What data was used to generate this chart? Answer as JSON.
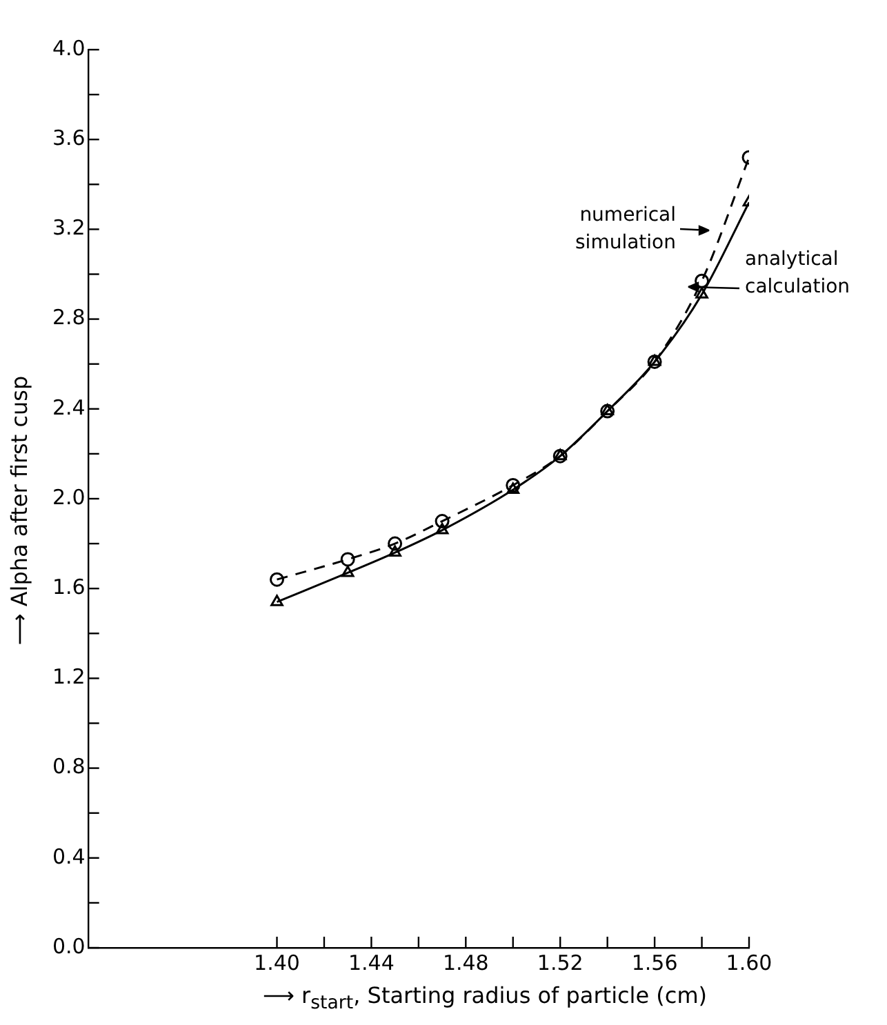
{
  "chart_data": {
    "type": "line",
    "xlabel": "⟶ r$_{start}$, Starting radius of particle (cm)",
    "ylabel": "⟶ Alpha after first cusp",
    "x": [
      1.4,
      1.43,
      1.45,
      1.47,
      1.5,
      1.52,
      1.54,
      1.56,
      1.58,
      1.6
    ],
    "series": [
      {
        "color": "#000000",
        "marker": "circle",
        "line_style": "dashed",
        "values": [
          1.64,
          1.73,
          1.8,
          1.9,
          2.06,
          2.19,
          2.39,
          2.61,
          2.97,
          3.52
        ]
      },
      {
        "color": "#000000",
        "marker": "triangle",
        "line_style": "solid",
        "values": [
          1.54,
          1.67,
          1.76,
          1.86,
          2.04,
          2.19,
          2.39,
          2.61,
          2.91,
          3.32
        ]
      }
    ],
    "annotations": [
      "numerical\nsimulation",
      "analytical\ncalculation"
    ],
    "xlim": [
      1.32,
      1.6
    ],
    "xticks": [
      {
        "value": 1.4,
        "label": "1.40"
      },
      {
        "value": 1.42,
        "label": null
      },
      {
        "value": 1.44,
        "label": "1.44"
      },
      {
        "value": 1.46,
        "label": null
      },
      {
        "value": 1.48,
        "label": "1.48"
      },
      {
        "value": 1.5,
        "label": null
      },
      {
        "value": 1.52,
        "label": "1.52"
      },
      {
        "value": 1.54,
        "label": null
      },
      {
        "value": 1.56,
        "label": "1.56"
      },
      {
        "value": 1.58,
        "label": null
      },
      {
        "value": 1.6,
        "label": "1.60"
      }
    ],
    "ylim": [
      0,
      4
    ],
    "yticks": [
      {
        "value": 0,
        "label": "0.0"
      },
      {
        "value": 0.2,
        "label": null
      },
      {
        "value": 0.4,
        "label": "0.4"
      },
      {
        "value": 0.6,
        "label": null
      },
      {
        "value": 0.8,
        "label": "0.8"
      },
      {
        "value": 1.0,
        "label": null
      },
      {
        "value": 1.2,
        "label": "1.2"
      },
      {
        "value": 1.4,
        "label": null
      },
      {
        "value": 1.6,
        "label": "1.6"
      },
      {
        "value": 1.8,
        "label": null
      },
      {
        "value": 2.0,
        "label": "2.0"
      },
      {
        "value": 2.2,
        "label": null
      },
      {
        "value": 2.4,
        "label": "2.4"
      },
      {
        "value": 2.6,
        "label": null
      },
      {
        "value": 2.8,
        "label": "2.8"
      },
      {
        "value": 3.0,
        "label": null
      },
      {
        "value": 3.2,
        "label": "3.2"
      },
      {
        "value": 3.4,
        "label": null
      },
      {
        "value": 3.6,
        "label": "3.6"
      },
      {
        "value": 3.8,
        "label": null
      },
      {
        "value": 4.0,
        "label": "4.0"
      }
    ],
    "grid": false,
    "legend": false
  }
}
